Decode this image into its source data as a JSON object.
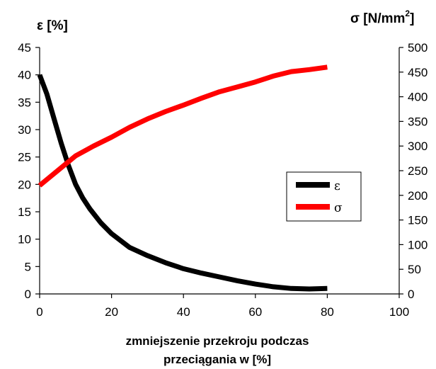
{
  "chart_data": {
    "type": "line",
    "y_left_label": "ε [%]",
    "y_right_label_main": "σ [N/mm",
    "y_right_label_sup": "2",
    "y_right_label_end": "]",
    "xlabel_line1": "zmniejszenie przekroju podczas",
    "xlabel_line2": "przeciągania w [%]",
    "xlim": [
      0,
      100
    ],
    "ylim_left": [
      0,
      45
    ],
    "ylim_right": [
      0,
      500
    ],
    "x_ticks": [
      0,
      20,
      40,
      60,
      80,
      100
    ],
    "y_left_ticks": [
      0,
      5,
      10,
      15,
      20,
      25,
      30,
      35,
      40,
      45
    ],
    "y_right_ticks": [
      0,
      50,
      100,
      150,
      200,
      250,
      300,
      350,
      400,
      450,
      500
    ],
    "grid": false,
    "legend_position": "right-middle",
    "series": [
      {
        "name": "ε",
        "axis": "left",
        "color": "#000000",
        "x": [
          0,
          2,
          4,
          6,
          8,
          10,
          12,
          14,
          17,
          20,
          25,
          30,
          35,
          40,
          45,
          50,
          55,
          60,
          65,
          70,
          75,
          80
        ],
        "y": [
          40,
          36.5,
          32,
          27.5,
          23.5,
          20,
          17.5,
          15.5,
          13,
          11,
          8.5,
          7,
          5.7,
          4.6,
          3.8,
          3.1,
          2.4,
          1.8,
          1.3,
          1.0,
          0.9,
          1.0
        ]
      },
      {
        "name": "σ",
        "axis": "right",
        "color": "#ff0000",
        "x": [
          0,
          5,
          10,
          15,
          20,
          25,
          30,
          35,
          40,
          45,
          50,
          55,
          60,
          65,
          70,
          75,
          80
        ],
        "y": [
          220,
          250,
          280,
          300,
          318,
          338,
          355,
          370,
          383,
          397,
          410,
          420,
          430,
          442,
          451,
          455,
          460
        ]
      }
    ]
  }
}
